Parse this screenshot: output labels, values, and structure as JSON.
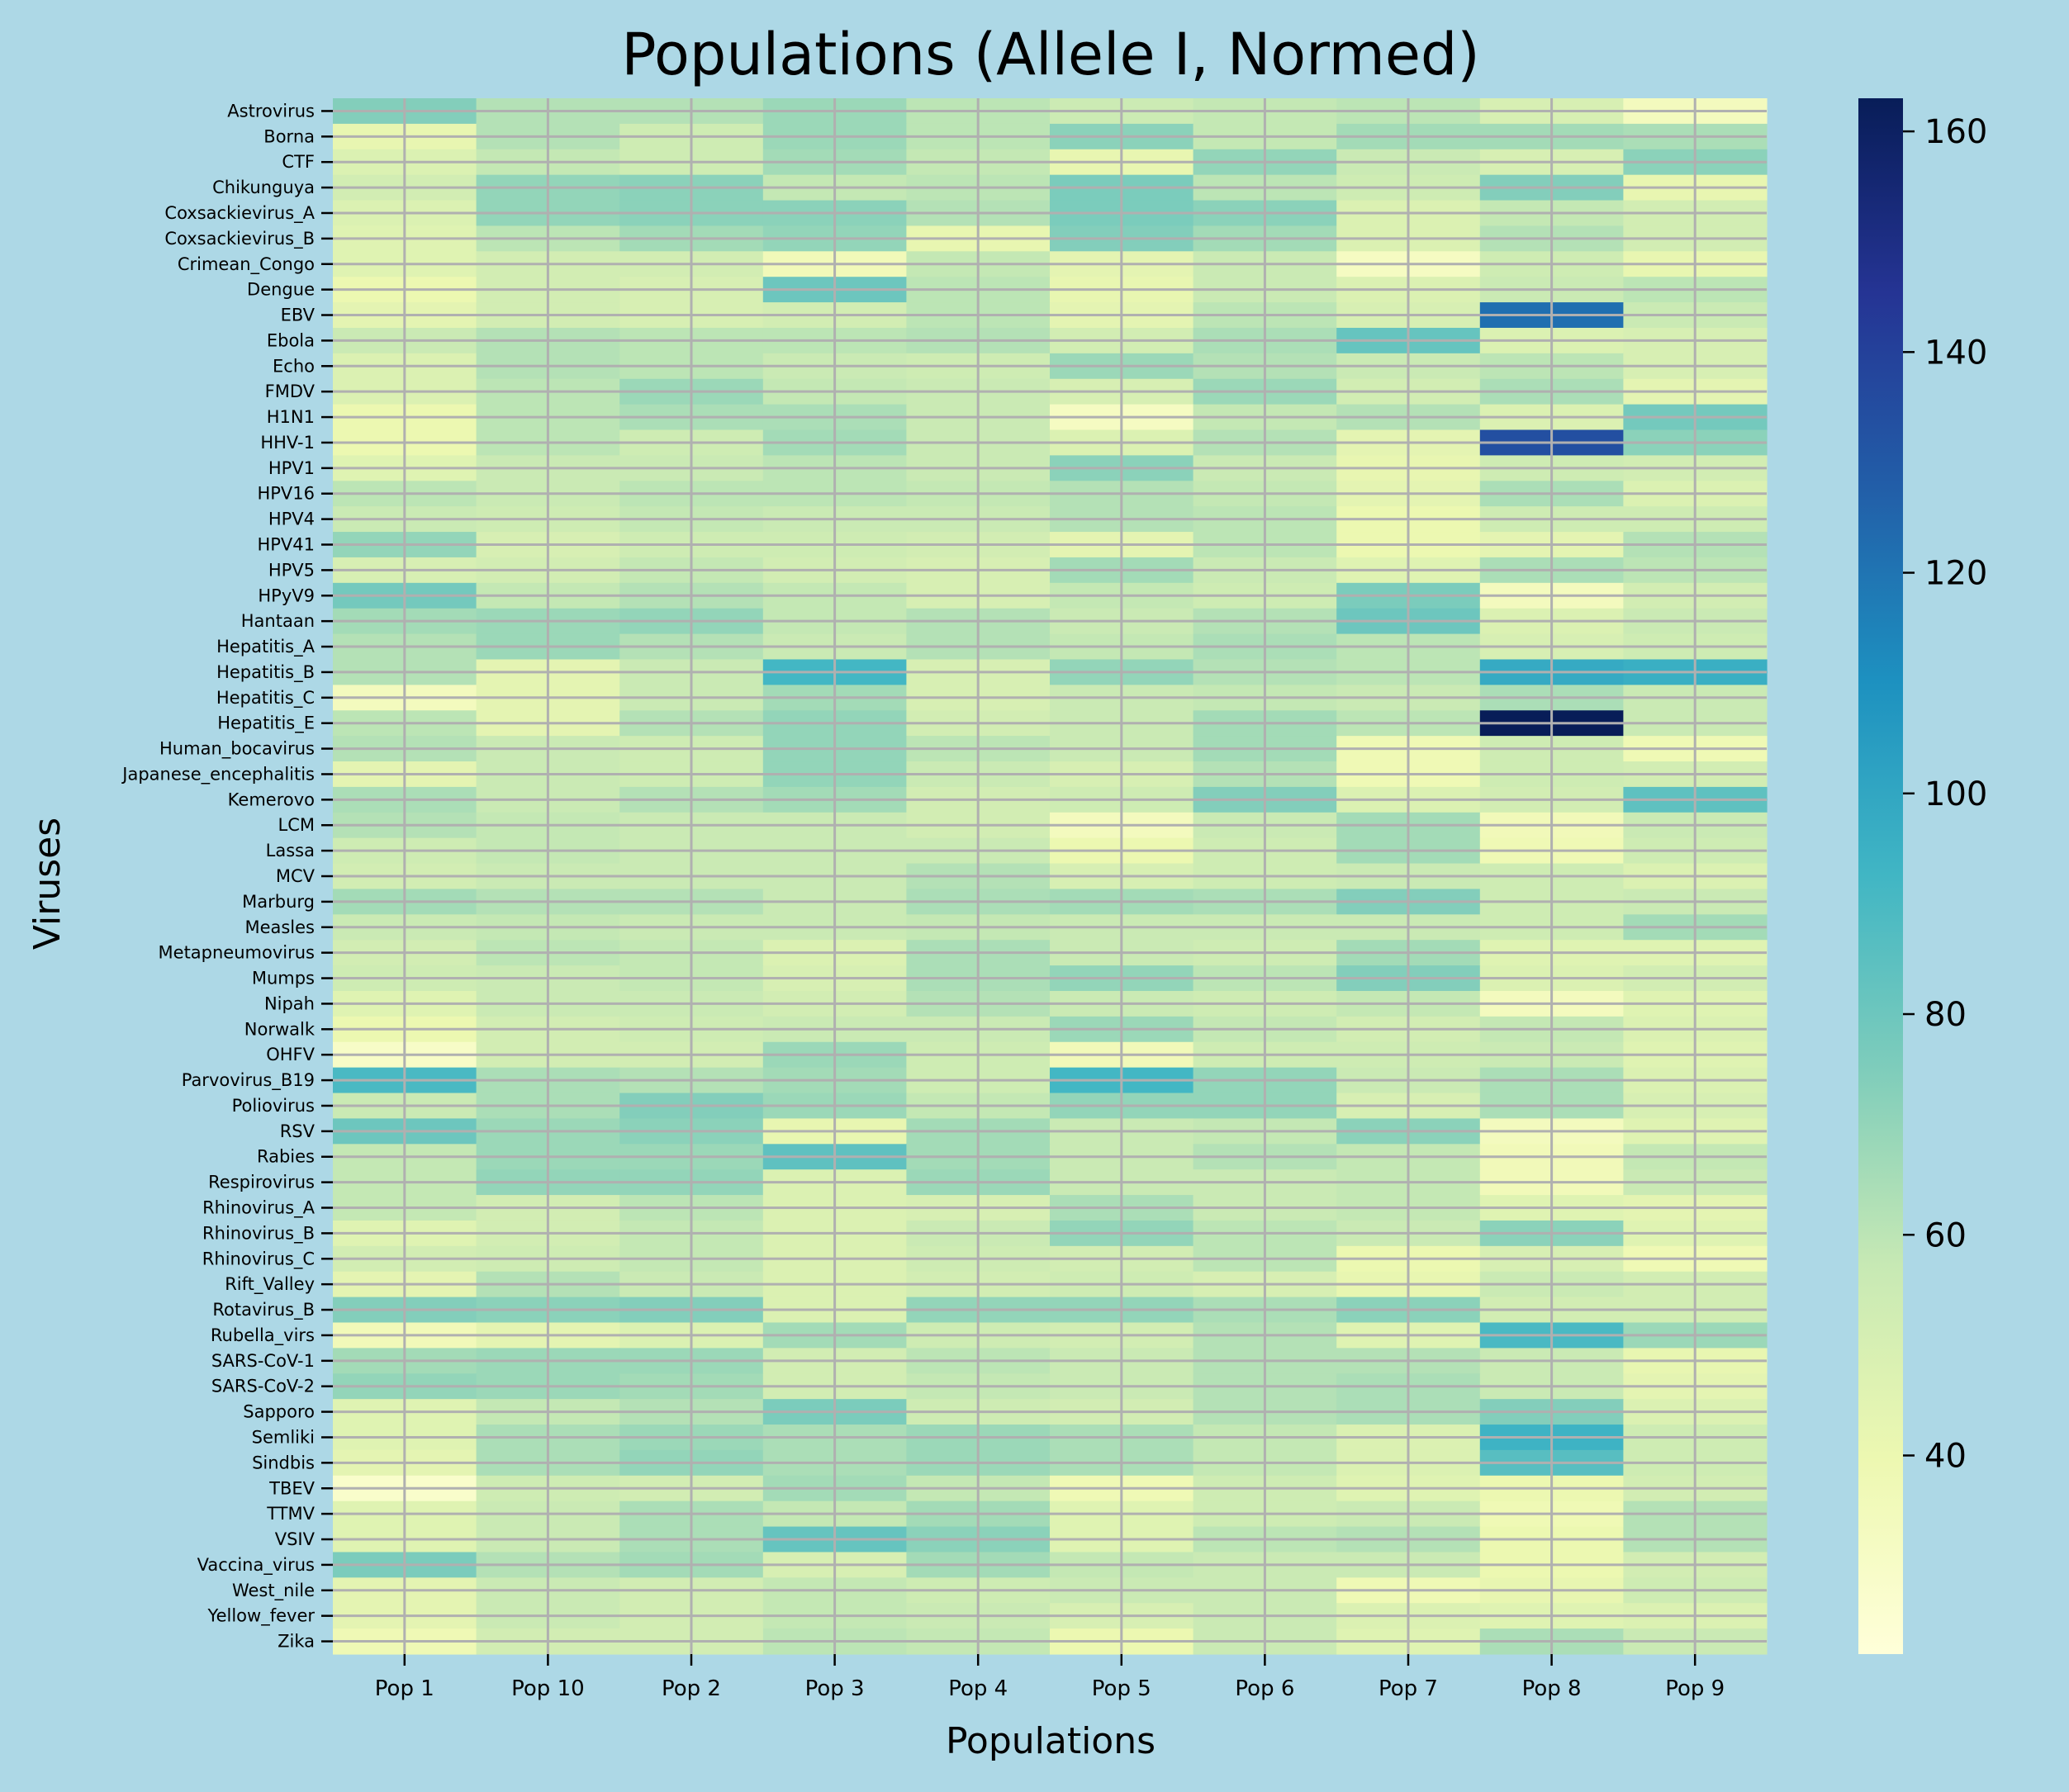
{
  "chart_data": {
    "type": "heatmap",
    "title": "Populations (Allele I, Normed)",
    "xlabel": "Populations",
    "ylabel": "Viruses",
    "x": [
      "Pop 1",
      "Pop 10",
      "Pop 2",
      "Pop 3",
      "Pop 4",
      "Pop 5",
      "Pop 6",
      "Pop 7",
      "Pop 8",
      "Pop 9"
    ],
    "y_tick_labels": [
      "Astrovirus",
      "Borna",
      "CTF",
      "Chikunguya",
      "Coxsackievirus_A",
      "Coxsackievirus_B",
      "Crimean_Congo",
      "Dengue",
      "EBV",
      "Ebola",
      "Echo",
      "FMDV",
      "H1N1",
      "HHV-1",
      "HPV1",
      "HPV16",
      "HPV4",
      "HPV41",
      "HPV5",
      "HPyV9",
      "Hantaan",
      "Hepatitis_A",
      "Hepatitis_B",
      "Hepatitis_C",
      "Hepatitis_E",
      "Human_bocavirus",
      "Japanese_encephalitis",
      "Kemerovo",
      "LCM",
      "Lassa",
      "MCV",
      "Marburg",
      "Measles",
      "Metapneumovirus",
      "Mumps",
      "Nipah",
      "Norwalk",
      "OHFV",
      "Parvovirus_B19",
      "Poliovirus",
      "RSV",
      "Rabies",
      "Respirovirus",
      "Rhinovirus_A",
      "Rhinovirus_B",
      "Rhinovirus_C",
      "Rift_Valley",
      "Rotavirus_B",
      "Rubella_virs",
      "SARS-CoV-1",
      "SARS-CoV-2",
      "Sapporo",
      "Semliki",
      "Sindbis",
      "TBEV",
      "TTMV",
      "VSIV",
      "Vaccina_virus",
      "West_nile",
      "Yellow_fever",
      "Zika"
    ],
    "rows_per_label": 2,
    "values": [
      [
        74,
        62,
        62,
        68,
        60,
        55,
        58,
        60,
        50,
        34
      ],
      [
        74,
        62,
        62,
        68,
        60,
        55,
        58,
        60,
        50,
        34
      ],
      [
        42,
        62,
        54,
        68,
        60,
        72,
        58,
        66,
        66,
        64
      ],
      [
        42,
        62,
        54,
        68,
        60,
        72,
        58,
        66,
        66,
        64
      ],
      [
        48,
        58,
        54,
        66,
        58,
        42,
        70,
        56,
        50,
        72
      ],
      [
        48,
        58,
        54,
        66,
        58,
        42,
        70,
        56,
        50,
        72
      ],
      [
        52,
        70,
        72,
        58,
        60,
        76,
        60,
        54,
        74,
        42
      ],
      [
        52,
        70,
        72,
        58,
        60,
        76,
        60,
        54,
        74,
        42
      ],
      [
        48,
        70,
        72,
        72,
        62,
        76,
        72,
        48,
        58,
        52
      ],
      [
        48,
        70,
        72,
        72,
        62,
        76,
        72,
        48,
        58,
        52
      ],
      [
        46,
        60,
        66,
        70,
        42,
        74,
        66,
        48,
        62,
        52
      ],
      [
        46,
        60,
        66,
        70,
        42,
        74,
        66,
        48,
        62,
        52
      ],
      [
        46,
        52,
        52,
        36,
        58,
        44,
        56,
        32,
        54,
        42
      ],
      [
        46,
        52,
        52,
        36,
        58,
        44,
        56,
        32,
        54,
        42
      ],
      [
        40,
        52,
        50,
        80,
        60,
        42,
        56,
        48,
        56,
        60
      ],
      [
        40,
        52,
        50,
        80,
        60,
        42,
        56,
        48,
        56,
        60
      ],
      [
        44,
        52,
        50,
        52,
        60,
        44,
        60,
        50,
        122,
        56
      ],
      [
        44,
        52,
        50,
        52,
        60,
        44,
        60,
        50,
        122,
        56
      ],
      [
        56,
        62,
        60,
        60,
        62,
        52,
        64,
        82,
        48,
        50
      ],
      [
        56,
        62,
        60,
        60,
        62,
        52,
        64,
        82,
        48,
        50
      ],
      [
        48,
        62,
        60,
        56,
        54,
        68,
        62,
        56,
        60,
        50
      ],
      [
        48,
        62,
        60,
        56,
        54,
        68,
        62,
        56,
        60,
        50
      ],
      [
        48,
        60,
        68,
        58,
        56,
        50,
        68,
        52,
        64,
        44
      ],
      [
        48,
        60,
        68,
        58,
        56,
        50,
        68,
        52,
        64,
        44
      ],
      [
        40,
        60,
        64,
        64,
        56,
        32,
        58,
        62,
        48,
        78
      ],
      [
        40,
        60,
        64,
        64,
        56,
        32,
        58,
        62,
        48,
        78
      ],
      [
        40,
        60,
        54,
        66,
        56,
        48,
        62,
        44,
        134,
        72
      ],
      [
        40,
        60,
        54,
        66,
        56,
        48,
        62,
        44,
        134,
        72
      ],
      [
        46,
        56,
        56,
        60,
        56,
        72,
        56,
        42,
        54,
        52
      ],
      [
        46,
        56,
        56,
        60,
        56,
        72,
        56,
        42,
        54,
        52
      ],
      [
        60,
        56,
        60,
        60,
        58,
        62,
        58,
        44,
        64,
        48
      ],
      [
        60,
        56,
        60,
        60,
        58,
        62,
        58,
        44,
        64,
        48
      ],
      [
        56,
        54,
        58,
        56,
        56,
        62,
        60,
        40,
        54,
        54
      ],
      [
        56,
        54,
        58,
        56,
        56,
        62,
        60,
        40,
        54,
        54
      ],
      [
        70,
        50,
        54,
        54,
        52,
        44,
        60,
        40,
        44,
        62
      ],
      [
        70,
        50,
        54,
        54,
        52,
        44,
        60,
        40,
        44,
        62
      ],
      [
        50,
        52,
        58,
        52,
        50,
        66,
        56,
        46,
        64,
        60
      ],
      [
        50,
        52,
        58,
        52,
        50,
        66,
        56,
        46,
        64,
        60
      ],
      [
        78,
        58,
        62,
        58,
        50,
        58,
        54,
        76,
        34,
        52
      ],
      [
        78,
        58,
        62,
        58,
        50,
        58,
        54,
        76,
        34,
        52
      ],
      [
        66,
        68,
        70,
        58,
        62,
        56,
        62,
        80,
        48,
        56
      ],
      [
        66,
        68,
        70,
        58,
        62,
        56,
        62,
        80,
        48,
        56
      ],
      [
        62,
        68,
        62,
        56,
        62,
        58,
        64,
        60,
        50,
        54
      ],
      [
        62,
        68,
        62,
        56,
        62,
        58,
        64,
        60,
        50,
        54
      ],
      [
        62,
        44,
        56,
        92,
        50,
        70,
        62,
        60,
        98,
        96
      ],
      [
        62,
        44,
        56,
        92,
        50,
        70,
        62,
        60,
        98,
        96
      ],
      [
        34,
        44,
        56,
        66,
        50,
        56,
        58,
        56,
        64,
        56
      ],
      [
        34,
        44,
        56,
        66,
        50,
        56,
        58,
        56,
        64,
        56
      ],
      [
        60,
        44,
        62,
        70,
        52,
        56,
        66,
        60,
        164,
        56
      ],
      [
        60,
        44,
        62,
        70,
        52,
        56,
        66,
        60,
        164,
        56
      ],
      [
        62,
        56,
        54,
        70,
        60,
        56,
        66,
        38,
        54,
        38
      ],
      [
        62,
        56,
        54,
        70,
        60,
        56,
        66,
        38,
        54,
        38
      ],
      [
        44,
        56,
        54,
        70,
        56,
        50,
        62,
        38,
        54,
        52
      ],
      [
        44,
        56,
        54,
        70,
        56,
        50,
        62,
        38,
        54,
        52
      ],
      [
        64,
        56,
        62,
        66,
        52,
        54,
        74,
        48,
        52,
        84
      ],
      [
        64,
        56,
        62,
        66,
        52,
        54,
        74,
        48,
        52,
        84
      ],
      [
        62,
        58,
        56,
        56,
        52,
        34,
        56,
        66,
        36,
        56
      ],
      [
        62,
        58,
        56,
        56,
        52,
        34,
        56,
        66,
        36,
        56
      ],
      [
        54,
        58,
        56,
        56,
        56,
        40,
        54,
        66,
        38,
        54
      ],
      [
        54,
        58,
        56,
        56,
        56,
        40,
        54,
        66,
        38,
        54
      ],
      [
        52,
        56,
        56,
        56,
        62,
        50,
        54,
        56,
        54,
        48
      ],
      [
        52,
        56,
        56,
        56,
        62,
        50,
        54,
        56,
        54,
        48
      ],
      [
        66,
        62,
        62,
        56,
        64,
        66,
        64,
        74,
        54,
        56
      ],
      [
        66,
        62,
        62,
        56,
        64,
        66,
        64,
        74,
        54,
        56
      ],
      [
        56,
        58,
        56,
        56,
        58,
        56,
        56,
        56,
        54,
        66
      ],
      [
        56,
        58,
        56,
        56,
        58,
        56,
        56,
        56,
        54,
        66
      ],
      [
        52,
        60,
        58,
        48,
        64,
        56,
        54,
        66,
        46,
        46
      ],
      [
        52,
        60,
        58,
        48,
        64,
        56,
        54,
        66,
        46,
        46
      ],
      [
        54,
        56,
        58,
        50,
        64,
        70,
        60,
        74,
        48,
        52
      ],
      [
        54,
        56,
        58,
        50,
        64,
        70,
        60,
        74,
        48,
        52
      ],
      [
        46,
        56,
        56,
        52,
        62,
        56,
        54,
        58,
        34,
        46
      ],
      [
        46,
        56,
        56,
        52,
        62,
        56,
        54,
        58,
        34,
        46
      ],
      [
        40,
        52,
        54,
        56,
        56,
        68,
        58,
        52,
        58,
        48
      ],
      [
        40,
        52,
        54,
        56,
        56,
        68,
        58,
        52,
        58,
        48
      ],
      [
        30,
        52,
        52,
        68,
        54,
        36,
        54,
        54,
        56,
        46
      ],
      [
        30,
        52,
        52,
        68,
        54,
        36,
        54,
        54,
        56,
        46
      ],
      [
        90,
        64,
        62,
        66,
        54,
        92,
        70,
        56,
        64,
        48
      ],
      [
        90,
        64,
        62,
        66,
        54,
        92,
        70,
        56,
        64,
        48
      ],
      [
        56,
        64,
        74,
        68,
        58,
        70,
        70,
        50,
        64,
        50
      ],
      [
        56,
        64,
        74,
        68,
        58,
        70,
        70,
        50,
        64,
        50
      ],
      [
        80,
        68,
        72,
        42,
        66,
        56,
        58,
        72,
        34,
        46
      ],
      [
        80,
        68,
        72,
        42,
        66,
        56,
        58,
        72,
        34,
        46
      ],
      [
        58,
        68,
        68,
        84,
        66,
        56,
        62,
        58,
        36,
        58
      ],
      [
        58,
        68,
        68,
        84,
        66,
        56,
        62,
        58,
        36,
        58
      ],
      [
        58,
        70,
        70,
        48,
        68,
        56,
        56,
        58,
        36,
        56
      ],
      [
        58,
        70,
        70,
        48,
        68,
        56,
        56,
        58,
        36,
        56
      ],
      [
        58,
        52,
        60,
        48,
        50,
        64,
        56,
        58,
        46,
        44
      ],
      [
        58,
        52,
        60,
        48,
        50,
        64,
        56,
        58,
        46,
        44
      ],
      [
        46,
        52,
        58,
        48,
        56,
        70,
        60,
        56,
        72,
        46
      ],
      [
        46,
        52,
        58,
        48,
        56,
        70,
        60,
        56,
        72,
        46
      ],
      [
        52,
        54,
        58,
        48,
        54,
        52,
        60,
        40,
        50,
        38
      ],
      [
        52,
        54,
        58,
        48,
        54,
        52,
        60,
        40,
        50,
        38
      ],
      [
        44,
        62,
        56,
        48,
        52,
        54,
        50,
        42,
        56,
        52
      ],
      [
        44,
        62,
        56,
        48,
        52,
        54,
        50,
        42,
        56,
        52
      ],
      [
        74,
        72,
        74,
        48,
        70,
        70,
        64,
        72,
        52,
        52
      ],
      [
        74,
        72,
        74,
        48,
        70,
        70,
        64,
        72,
        52,
        52
      ],
      [
        36,
        44,
        48,
        66,
        54,
        52,
        62,
        46,
        90,
        68
      ],
      [
        36,
        44,
        48,
        66,
        54,
        52,
        62,
        46,
        90,
        68
      ],
      [
        66,
        68,
        68,
        52,
        60,
        56,
        62,
        62,
        56,
        42
      ],
      [
        66,
        68,
        68,
        52,
        60,
        56,
        62,
        62,
        56,
        42
      ],
      [
        70,
        68,
        66,
        52,
        58,
        56,
        62,
        64,
        56,
        44
      ],
      [
        70,
        68,
        66,
        52,
        58,
        56,
        62,
        64,
        56,
        44
      ],
      [
        46,
        58,
        62,
        76,
        54,
        52,
        62,
        64,
        74,
        48
      ],
      [
        46,
        58,
        62,
        76,
        54,
        52,
        62,
        64,
        74,
        48
      ],
      [
        46,
        64,
        68,
        64,
        68,
        64,
        58,
        48,
        94,
        54
      ],
      [
        46,
        64,
        68,
        64,
        68,
        64,
        58,
        48,
        94,
        54
      ],
      [
        44,
        64,
        70,
        64,
        68,
        64,
        58,
        48,
        86,
        54
      ],
      [
        44,
        64,
        70,
        64,
        68,
        64,
        58,
        48,
        86,
        54
      ],
      [
        28,
        54,
        52,
        66,
        58,
        38,
        54,
        46,
        40,
        52
      ],
      [
        28,
        54,
        52,
        66,
        58,
        38,
        54,
        46,
        40,
        52
      ],
      [
        46,
        56,
        64,
        58,
        66,
        46,
        54,
        56,
        38,
        62
      ],
      [
        46,
        56,
        64,
        58,
        66,
        46,
        54,
        56,
        38,
        62
      ],
      [
        46,
        56,
        64,
        82,
        72,
        46,
        60,
        62,
        40,
        62
      ],
      [
        46,
        56,
        64,
        82,
        72,
        46,
        60,
        62,
        40,
        62
      ],
      [
        76,
        62,
        66,
        50,
        66,
        58,
        56,
        56,
        40,
        52
      ],
      [
        76,
        62,
        66,
        50,
        66,
        58,
        56,
        56,
        40,
        52
      ],
      [
        44,
        56,
        52,
        58,
        54,
        56,
        56,
        38,
        42,
        54
      ],
      [
        44,
        56,
        52,
        58,
        54,
        56,
        56,
        38,
        42,
        54
      ],
      [
        44,
        56,
        52,
        58,
        56,
        50,
        56,
        48,
        46,
        48
      ],
      [
        44,
        56,
        52,
        58,
        56,
        50,
        56,
        48,
        46,
        48
      ],
      [
        38,
        52,
        52,
        60,
        58,
        40,
        56,
        46,
        64,
        56
      ],
      [
        38,
        52,
        52,
        60,
        58,
        40,
        56,
        46,
        64,
        56
      ]
    ],
    "colorbar": {
      "range": [
        22,
        163
      ],
      "ticks": [
        40,
        60,
        80,
        100,
        120,
        140,
        160
      ]
    },
    "colormap": "YlGnBu",
    "grid": true,
    "colors": {
      "background": "#add8e6",
      "grid": "#b0b0b0"
    }
  }
}
